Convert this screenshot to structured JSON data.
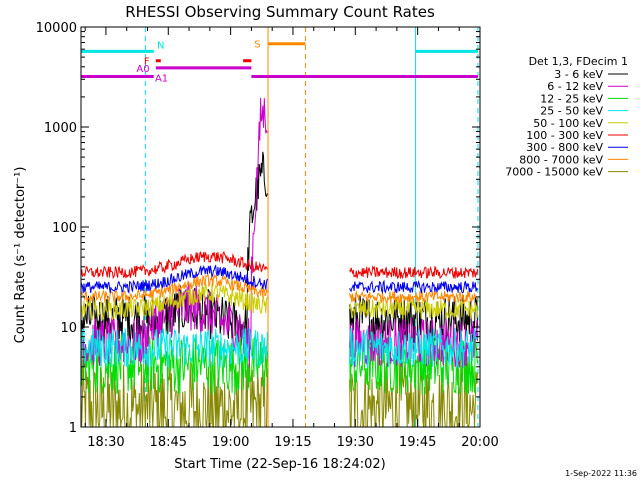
{
  "chart_data": {
    "type": "line",
    "title": "RHESSI Observing Summary Count Rates",
    "xlabel": "Start Time (22-Sep-16 18:24:02)",
    "ylabel": "Count Rate (s⁻¹ detector⁻¹)",
    "yscale": "log",
    "ylim": [
      1,
      10000
    ],
    "xlim_minutes": [
      24,
      120
    ],
    "x_ticks": [
      {
        "label": "18:30",
        "min": 30
      },
      {
        "label": "18:45",
        "min": 45
      },
      {
        "label": "19:00",
        "min": 60
      },
      {
        "label": "19:15",
        "min": 75
      },
      {
        "label": "19:30",
        "min": 90
      },
      {
        "label": "19:45",
        "min": 105
      },
      {
        "label": "20:00",
        "min": 120
      }
    ],
    "y_ticks": [
      {
        "label": "1",
        "v": 1
      },
      {
        "label": "10",
        "v": 10
      },
      {
        "label": "100",
        "v": 100
      },
      {
        "label": "1000",
        "v": 1000
      },
      {
        "label": "10000",
        "v": 10000
      }
    ],
    "legend_header": "Det 1,3, FDecim 1",
    "series": [
      {
        "name": "3 - 6 keV",
        "color": "#000000",
        "base": 12,
        "noise": 0.25
      },
      {
        "name": "6 - 12 keV",
        "color": "#cc00cc",
        "base": 7,
        "noise": 0.25
      },
      {
        "name": "12 - 25 keV",
        "color": "#00dd00",
        "base": 4.2,
        "noise": 0.3
      },
      {
        "name": "25 - 50 keV",
        "color": "#00e5e5",
        "base": 6.2,
        "noise": 0.2
      },
      {
        "name": "50 - 100 keV",
        "color": "#cccc00",
        "base": 15,
        "noise": 0.1
      },
      {
        "name": "100 - 300 keV",
        "color": "#ee0000",
        "base": 35,
        "noise": 0.06
      },
      {
        "name": "300 - 800 keV",
        "color": "#0000ee",
        "base": 25,
        "noise": 0.06
      },
      {
        "name": "800 - 7000 keV",
        "color": "#ff8800",
        "base": 20,
        "noise": 0.06
      },
      {
        "name": "7000 - 15000 keV",
        "color": "#888800",
        "base": 1.5,
        "noise": 0.5
      }
    ],
    "data_gaps_minutes": [
      [
        69,
        88.5
      ]
    ],
    "flare_peak": {
      "series": "6 - 12 keV",
      "start_min": 65,
      "peak_min": 67.3,
      "peak_value": 1350
    },
    "state_flags": [
      {
        "label": "N",
        "color": "#00e5e5",
        "segments": [
          [
            24,
            41.5
          ],
          [
            104.5,
            119.5
          ]
        ],
        "value": 5700
      },
      {
        "label": "F",
        "color": "#ee0000",
        "segments": [
          [
            42,
            43.2
          ],
          [
            63,
            65
          ]
        ],
        "value": 4600
      },
      {
        "label": "A0",
        "color": "#cc00cc",
        "segments": [
          [
            42,
            65
          ]
        ],
        "value": 3900
      },
      {
        "label": "A1",
        "color": "#cc00cc",
        "segments": [
          [
            24,
            41.5
          ],
          [
            65,
            119.5
          ]
        ],
        "value": 3200
      },
      {
        "label": "S",
        "color": "#ff8800",
        "segments": [
          [
            69,
            78
          ]
        ],
        "value": 6800
      }
    ],
    "vlines": [
      {
        "min": 24,
        "color": "#00e5e5",
        "style": "solid"
      },
      {
        "min": 39.5,
        "color": "#00e5e5",
        "style": "dashed"
      },
      {
        "min": 69,
        "color": "#ff8800",
        "style": "solid"
      },
      {
        "min": 78,
        "color": "#ff8800",
        "style": "dashed"
      },
      {
        "min": 104.5,
        "color": "#00e5e5",
        "style": "solid"
      },
      {
        "min": 119.5,
        "color": "#00e5e5",
        "style": "dashed"
      }
    ],
    "timestamp": "1-Sep-2022 11:36"
  }
}
